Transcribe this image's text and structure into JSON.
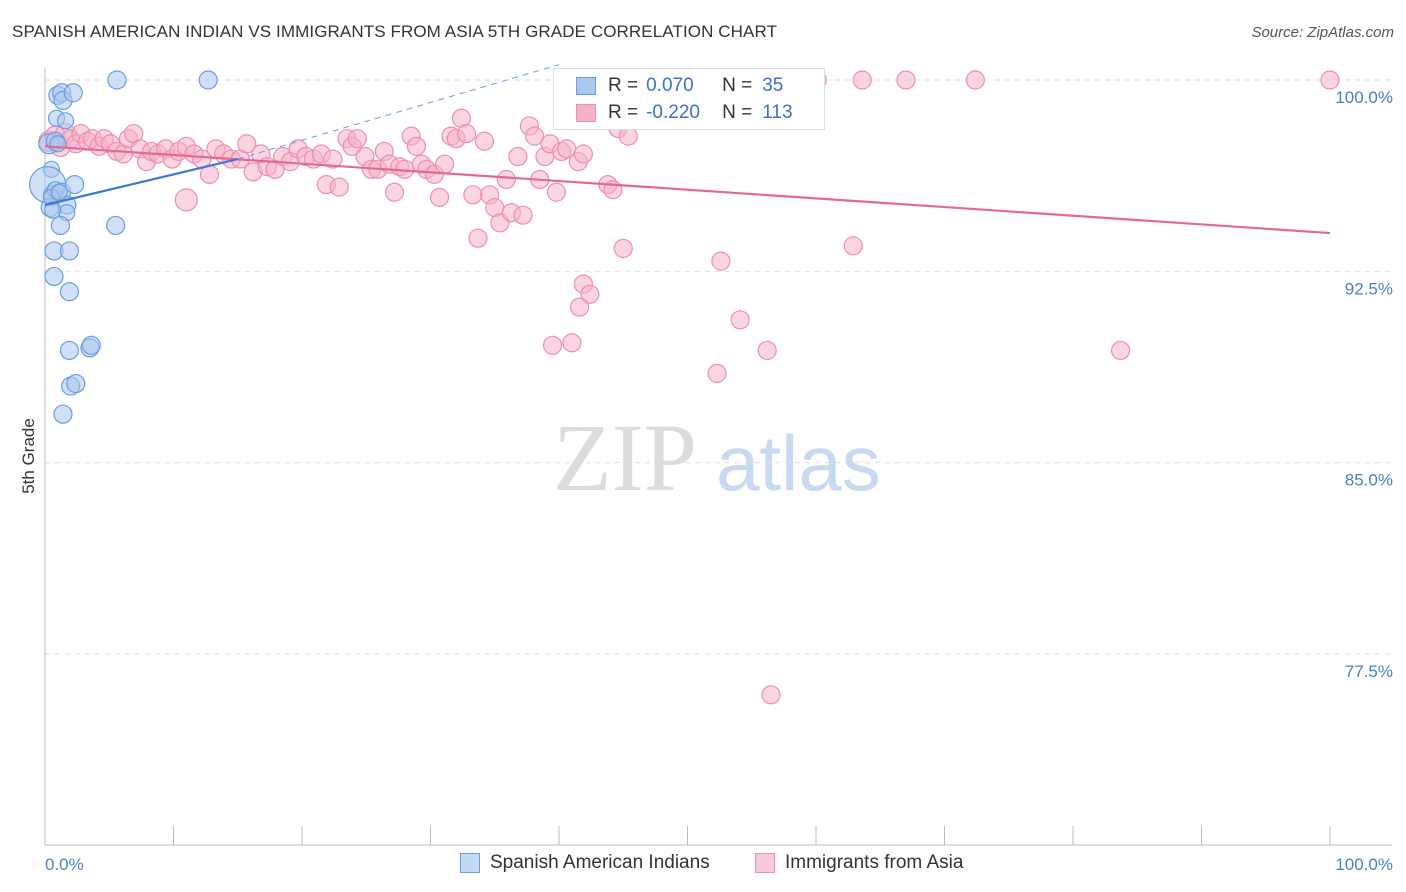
{
  "title": "SPANISH AMERICAN INDIAN VS IMMIGRANTS FROM ASIA 5TH GRADE CORRELATION CHART",
  "source": "Source: ZipAtlas.com",
  "watermark": {
    "zip": "ZIP",
    "atlas": "atlas"
  },
  "legend": {
    "r_label": "R =",
    "n_label": "N =",
    "series1": {
      "r": "0.070",
      "n": "35"
    },
    "series2": {
      "r": "-0.220",
      "n": "113"
    }
  },
  "colors": {
    "blue": "#3a78d4",
    "blue_fill": "#a9c7ef",
    "blue_stroke": "#6a9ee0",
    "pink": "#e4679a",
    "pink_fill": "#f5b3c9",
    "pink_stroke": "#ec8fb1",
    "grid": "#dddddd",
    "tick_label": "#4a7fc9"
  },
  "chart_data": {
    "type": "scatter",
    "ylabel": "5th Grade",
    "xlabel": "",
    "xlim": [
      0,
      100
    ],
    "ylim": [
      70,
      101.5
    ],
    "x_tick_labels": [
      "0.0%",
      "100.0%"
    ],
    "y_ticks": [
      100.0,
      92.5,
      85.0,
      77.5
    ],
    "y_tick_labels": [
      "100.0%",
      "92.5%",
      "85.0%",
      "77.5%"
    ],
    "series": [
      {
        "name": "Spanish American Indians",
        "color": "blue",
        "trend": {
          "x": [
            0,
            15
          ],
          "y": [
            95.1,
            96.9
          ]
        },
        "trend_dashed": {
          "x": [
            15,
            40
          ],
          "y": [
            96.9,
            100.6
          ]
        },
        "points": [
          [
            0.3,
            97.5,
            10
          ],
          [
            0.5,
            96.5,
            8
          ],
          [
            0.2,
            95.9,
            18
          ],
          [
            0.6,
            95.5,
            9
          ],
          [
            0.8,
            95.7,
            8
          ],
          [
            0.4,
            95.0,
            9
          ],
          [
            1.3,
            95.6,
            9
          ],
          [
            1.7,
            95.1,
            9
          ],
          [
            1.7,
            94.8,
            8
          ],
          [
            1.2,
            94.3,
            9
          ],
          [
            2.3,
            95.9,
            9
          ],
          [
            0.7,
            93.3,
            9
          ],
          [
            1.9,
            93.3,
            9
          ],
          [
            0.7,
            92.3,
            9
          ],
          [
            1.9,
            91.7,
            9
          ],
          [
            1.0,
            99.4,
            9
          ],
          [
            1.3,
            99.5,
            9
          ],
          [
            1.4,
            99.2,
            9
          ],
          [
            2.2,
            99.5,
            9
          ],
          [
            0.9,
            98.5,
            8
          ],
          [
            1.6,
            98.4,
            8
          ],
          [
            0.8,
            97.6,
            9
          ],
          [
            1.0,
            97.5,
            8
          ],
          [
            1.9,
            89.4,
            9
          ],
          [
            3.5,
            89.5,
            9
          ],
          [
            3.6,
            89.6,
            9
          ],
          [
            2.0,
            88.0,
            9
          ],
          [
            2.4,
            88.1,
            9
          ],
          [
            1.4,
            86.9,
            9
          ],
          [
            5.5,
            94.3,
            9
          ],
          [
            5.6,
            100.0,
            9
          ],
          [
            12.7,
            100.0,
            9
          ],
          [
            0.5,
            95.4,
            8
          ],
          [
            1.1,
            95.6,
            8
          ],
          [
            0.6,
            94.9,
            8
          ]
        ]
      },
      {
        "name": "Immigrants from Asia",
        "color": "pink",
        "trend": {
          "x": [
            0,
            100
          ],
          "y": [
            97.4,
            94.0
          ]
        },
        "points": [
          [
            0.3,
            97.6,
            10
          ],
          [
            0.8,
            97.8,
            10
          ],
          [
            1.2,
            97.4,
            10
          ],
          [
            1.6,
            97.9,
            10
          ],
          [
            2.0,
            97.7,
            9
          ],
          [
            2.4,
            97.5,
            9
          ],
          [
            2.8,
            97.9,
            9
          ],
          [
            3.3,
            97.6,
            9
          ],
          [
            3.7,
            97.7,
            9
          ],
          [
            4.2,
            97.4,
            9
          ],
          [
            4.6,
            97.7,
            9
          ],
          [
            5.1,
            97.5,
            9
          ],
          [
            5.6,
            97.2,
            9
          ],
          [
            6.1,
            97.1,
            9
          ],
          [
            6.5,
            97.7,
            9
          ],
          [
            6.9,
            97.9,
            9
          ],
          [
            7.4,
            97.3,
            9
          ],
          [
            7.9,
            96.8,
            9
          ],
          [
            8.3,
            97.2,
            9
          ],
          [
            8.8,
            97.1,
            9
          ],
          [
            9.4,
            97.3,
            9
          ],
          [
            9.9,
            96.9,
            9
          ],
          [
            10.4,
            97.2,
            9
          ],
          [
            11.0,
            97.4,
            9
          ],
          [
            11.6,
            97.1,
            9
          ],
          [
            12.2,
            96.9,
            9
          ],
          [
            12.8,
            96.3,
            9
          ],
          [
            13.3,
            97.3,
            9
          ],
          [
            13.9,
            97.1,
            9
          ],
          [
            14.5,
            96.9,
            9
          ],
          [
            15.2,
            96.9,
            9
          ],
          [
            15.7,
            97.5,
            9
          ],
          [
            16.2,
            96.4,
            9
          ],
          [
            16.8,
            97.1,
            9
          ],
          [
            17.3,
            96.6,
            9
          ],
          [
            17.9,
            96.5,
            9
          ],
          [
            18.5,
            97.0,
            9
          ],
          [
            19.1,
            96.8,
            9
          ],
          [
            19.7,
            97.3,
            9
          ],
          [
            20.3,
            97.0,
            9
          ],
          [
            20.9,
            96.9,
            9
          ],
          [
            21.5,
            97.1,
            9
          ],
          [
            21.9,
            95.9,
            9
          ],
          [
            22.4,
            96.9,
            9
          ],
          [
            22.9,
            95.8,
            9
          ],
          [
            23.5,
            97.7,
            9
          ],
          [
            23.9,
            97.4,
            9
          ],
          [
            24.3,
            97.7,
            9
          ],
          [
            24.9,
            97.0,
            9
          ],
          [
            25.4,
            96.5,
            9
          ],
          [
            25.9,
            96.5,
            9
          ],
          [
            26.4,
            97.2,
            9
          ],
          [
            26.8,
            96.7,
            9
          ],
          [
            27.2,
            95.6,
            9
          ],
          [
            27.6,
            96.6,
            9
          ],
          [
            28.0,
            96.5,
            9
          ],
          [
            28.5,
            97.8,
            9
          ],
          [
            28.9,
            97.4,
            9
          ],
          [
            29.3,
            96.7,
            9
          ],
          [
            29.7,
            96.5,
            9
          ],
          [
            30.3,
            96.3,
            9
          ],
          [
            30.7,
            95.4,
            9
          ],
          [
            31.1,
            96.7,
            9
          ],
          [
            31.6,
            97.8,
            9
          ],
          [
            32.0,
            97.7,
            9
          ],
          [
            32.4,
            98.5,
            9
          ],
          [
            32.8,
            97.9,
            9
          ],
          [
            33.3,
            95.5,
            9
          ],
          [
            33.7,
            93.8,
            9
          ],
          [
            34.2,
            97.6,
            9
          ],
          [
            34.6,
            95.5,
            9
          ],
          [
            35.0,
            95.0,
            9
          ],
          [
            35.4,
            94.4,
            9
          ],
          [
            35.9,
            96.1,
            9
          ],
          [
            36.3,
            94.8,
            9
          ],
          [
            36.8,
            97.0,
            9
          ],
          [
            37.2,
            94.7,
            9
          ],
          [
            37.7,
            98.2,
            9
          ],
          [
            38.1,
            97.8,
            9
          ],
          [
            38.5,
            96.1,
            9
          ],
          [
            38.9,
            97.0,
            9
          ],
          [
            39.3,
            97.5,
            9
          ],
          [
            39.8,
            95.6,
            9
          ],
          [
            40.2,
            97.2,
            9
          ],
          [
            40.6,
            97.3,
            9
          ],
          [
            41.5,
            96.8,
            9
          ],
          [
            41.9,
            97.1,
            9
          ],
          [
            43.8,
            95.9,
            9
          ],
          [
            44.2,
            95.7,
            9
          ],
          [
            44.6,
            98.1,
            9
          ],
          [
            45.0,
            93.4,
            9
          ],
          [
            45.4,
            97.8,
            9
          ],
          [
            41.9,
            92.0,
            9
          ],
          [
            42.4,
            91.6,
            9
          ],
          [
            41.6,
            91.1,
            9
          ],
          [
            41.0,
            89.7,
            9
          ],
          [
            39.5,
            89.6,
            9
          ],
          [
            49.5,
            100.0,
            9
          ],
          [
            50.1,
            100.0,
            9
          ],
          [
            52.6,
            92.9,
            9
          ],
          [
            54.1,
            90.6,
            9
          ],
          [
            52.3,
            88.5,
            9
          ],
          [
            56.2,
            89.4,
            9
          ],
          [
            59.0,
            100.0,
            9
          ],
          [
            60.1,
            100.0,
            9
          ],
          [
            62.9,
            93.5,
            9
          ],
          [
            63.6,
            100.0,
            9
          ],
          [
            67.0,
            100.0,
            9
          ],
          [
            72.4,
            100.0,
            9
          ],
          [
            83.7,
            89.4,
            9
          ],
          [
            100.0,
            100.0,
            9
          ],
          [
            11.0,
            95.3,
            11
          ],
          [
            56.5,
            75.9,
            9
          ]
        ]
      }
    ]
  }
}
